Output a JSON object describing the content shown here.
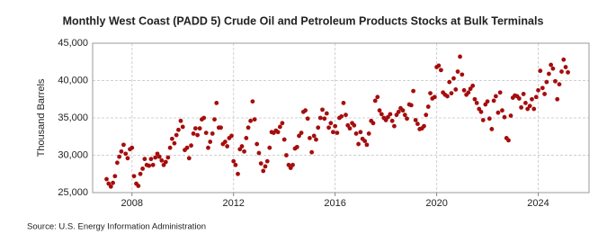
{
  "chart_data": {
    "type": "scatter",
    "title": "Monthly West Coast (PADD 5) Crude Oil and Petroleum Products Stocks at Bulk Terminals",
    "y_label": "Thousand Barrels",
    "source": "Source: U.S. Energy Information Administration",
    "color": "#a50d0d",
    "grid": true,
    "xlim": [
      2006.45,
      2026.0
    ],
    "xticks": [
      2008,
      2012,
      2016,
      2020,
      2024
    ],
    "ylim": [
      25000,
      45000
    ],
    "yticks": [
      {
        "value": 25000,
        "label": "25,000"
      },
      {
        "value": 30000,
        "label": "30,000"
      },
      {
        "value": 35000,
        "label": "35,000"
      },
      {
        "value": 40000,
        "label": "40,000"
      },
      {
        "value": 45000,
        "label": "45,000"
      }
    ],
    "x": [
      2007.0,
      2007.08,
      2007.17,
      2007.25,
      2007.33,
      2007.42,
      2007.5,
      2007.58,
      2007.67,
      2007.75,
      2007.83,
      2007.92,
      2008.0,
      2008.08,
      2008.17,
      2008.25,
      2008.33,
      2008.42,
      2008.5,
      2008.58,
      2008.67,
      2008.75,
      2008.83,
      2008.92,
      2009.0,
      2009.08,
      2009.17,
      2009.25,
      2009.33,
      2009.42,
      2009.5,
      2009.58,
      2009.67,
      2009.75,
      2009.83,
      2009.92,
      2010.0,
      2010.08,
      2010.17,
      2010.25,
      2010.33,
      2010.42,
      2010.5,
      2010.58,
      2010.67,
      2010.75,
      2010.83,
      2010.92,
      2011.0,
      2011.08,
      2011.17,
      2011.25,
      2011.33,
      2011.42,
      2011.5,
      2011.58,
      2011.67,
      2011.75,
      2011.83,
      2011.92,
      2012.0,
      2012.08,
      2012.17,
      2012.25,
      2012.33,
      2012.42,
      2012.5,
      2012.58,
      2012.67,
      2012.75,
      2012.83,
      2012.92,
      2013.0,
      2013.08,
      2013.17,
      2013.25,
      2013.33,
      2013.42,
      2013.5,
      2013.58,
      2013.67,
      2013.75,
      2013.83,
      2013.92,
      2014.0,
      2014.08,
      2014.17,
      2014.25,
      2014.33,
      2014.42,
      2014.5,
      2014.58,
      2014.67,
      2014.75,
      2014.83,
      2014.92,
      2015.0,
      2015.08,
      2015.17,
      2015.25,
      2015.33,
      2015.42,
      2015.5,
      2015.58,
      2015.67,
      2015.75,
      2015.83,
      2015.92,
      2016.0,
      2016.08,
      2016.17,
      2016.25,
      2016.33,
      2016.42,
      2016.5,
      2016.58,
      2016.67,
      2016.75,
      2016.83,
      2016.92,
      2017.0,
      2017.08,
      2017.17,
      2017.25,
      2017.33,
      2017.42,
      2017.5,
      2017.58,
      2017.67,
      2017.75,
      2017.83,
      2017.92,
      2018.0,
      2018.08,
      2018.17,
      2018.25,
      2018.33,
      2018.42,
      2018.5,
      2018.58,
      2018.67,
      2018.75,
      2018.83,
      2018.92,
      2019.0,
      2019.08,
      2019.17,
      2019.25,
      2019.33,
      2019.42,
      2019.5,
      2019.58,
      2019.67,
      2019.75,
      2019.83,
      2019.92,
      2020.0,
      2020.08,
      2020.17,
      2020.25,
      2020.33,
      2020.42,
      2020.5,
      2020.58,
      2020.67,
      2020.75,
      2020.83,
      2020.92,
      2021.0,
      2021.08,
      2021.17,
      2021.25,
      2021.33,
      2021.42,
      2021.5,
      2021.58,
      2021.67,
      2021.75,
      2021.83,
      2021.92,
      2022.0,
      2022.08,
      2022.17,
      2022.25,
      2022.33,
      2022.42,
      2022.5,
      2022.58,
      2022.67,
      2022.75,
      2022.83,
      2022.92,
      2023.0,
      2023.08,
      2023.17,
      2023.25,
      2023.33,
      2023.42,
      2023.5,
      2023.58,
      2023.67,
      2023.75,
      2023.83,
      2023.92,
      2024.0,
      2024.08,
      2024.17,
      2024.25,
      2024.33,
      2024.42,
      2024.5,
      2024.58,
      2024.67,
      2024.75,
      2024.83,
      2024.92,
      2025.0,
      2025.08,
      2025.17
    ],
    "values": [
      26800,
      26200,
      25800,
      26300,
      27200,
      29000,
      29800,
      30500,
      31400,
      30200,
      29600,
      30800,
      31000,
      27200,
      26200,
      25900,
      27500,
      28200,
      29500,
      28700,
      28600,
      29500,
      28700,
      29700,
      30200,
      29800,
      29300,
      28700,
      29100,
      29700,
      31000,
      32200,
      31600,
      32700,
      33400,
      34600,
      33800,
      30700,
      31000,
      29600,
      31300,
      32900,
      33600,
      32700,
      33600,
      34800,
      35000,
      33000,
      31000,
      31800,
      32900,
      34800,
      37000,
      33700,
      33700,
      31500,
      31800,
      31200,
      32300,
      32600,
      29200,
      28700,
      27500,
      30800,
      31200,
      30500,
      32300,
      33700,
      34600,
      37200,
      34800,
      31500,
      30300,
      28900,
      27900,
      28500,
      29200,
      31000,
      33100,
      33000,
      33300,
      33100,
      33800,
      34300,
      32100,
      30000,
      28700,
      28300,
      28700,
      30900,
      31100,
      32600,
      33000,
      35800,
      36000,
      34900,
      32300,
      30400,
      32600,
      32100,
      33700,
      35000,
      36100,
      34900,
      35600,
      33700,
      34300,
      33100,
      33900,
      33000,
      35000,
      35200,
      37000,
      35400,
      34000,
      33600,
      34300,
      34000,
      32900,
      31500,
      33100,
      32200,
      31900,
      31400,
      32900,
      34600,
      34300,
      37300,
      37800,
      36000,
      35500,
      35000,
      34700,
      35100,
      35500,
      34600,
      33900,
      35400,
      35800,
      36300,
      36000,
      35400,
      34900,
      36800,
      36700,
      38600,
      34700,
      34200,
      33500,
      33600,
      33900,
      35400,
      36500,
      38300,
      37600,
      37800,
      41800,
      42000,
      41400,
      38400,
      38100,
      37900,
      39800,
      38300,
      40300,
      38800,
      41200,
      43200,
      40800,
      38700,
      38100,
      38400,
      38900,
      39300,
      37500,
      37000,
      36200,
      35800,
      34700,
      36800,
      37200,
      34900,
      33500,
      37300,
      37900,
      35700,
      38400,
      36000,
      35100,
      32300,
      32000,
      35300,
      37700,
      38000,
      37900,
      37600,
      36400,
      38200,
      37000,
      36200,
      36600,
      37500,
      36200,
      37800,
      38700,
      41300,
      39000,
      38200,
      39800,
      40900,
      42100,
      41600,
      39900,
      37500,
      39500,
      41200,
      42800,
      41800,
      41100
    ]
  }
}
